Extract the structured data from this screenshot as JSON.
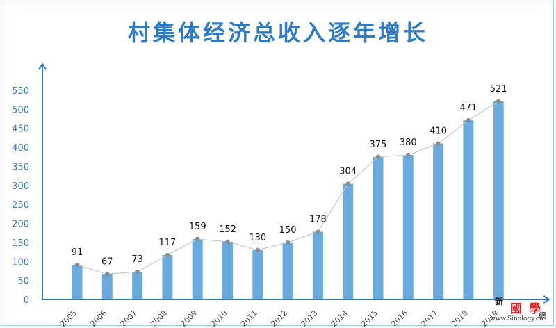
{
  "title": "村集体经济总收入逐年增长",
  "colors": {
    "title": "#2e7bc4",
    "bar": "#6aaadc",
    "axis": "#2e7bc4",
    "line": "#c8c8c8",
    "marker": "#8c8c8c",
    "ytick": "#3a77b5",
    "frame": "#9fc9dc"
  },
  "watermark": {
    "char1": "新",
    "char2": "國學",
    "char3": "網",
    "url": "www.Sinology.cn"
  },
  "chart_data": {
    "type": "bar",
    "title": "村集体经济总收入逐年增长",
    "xlabel": "",
    "ylabel": "",
    "categories": [
      "2005",
      "2006",
      "2007",
      "2008",
      "2009",
      "2010",
      "2011",
      "2012",
      "2013",
      "2014",
      "2015",
      "2016",
      "2017",
      "2018",
      "2019"
    ],
    "values": [
      91,
      67,
      73,
      117,
      159,
      152,
      130,
      150,
      178,
      304,
      375,
      380,
      410,
      471,
      521
    ],
    "data_labels": [
      "91",
      "67",
      "73",
      "117",
      "159",
      "152",
      "130",
      "150",
      "178",
      "304",
      "375",
      "380",
      "410",
      "471",
      "521"
    ],
    "overlay_line": true,
    "yticks": [
      "0",
      "50",
      "100",
      "150",
      "200",
      "250",
      "300",
      "350",
      "400",
      "450",
      "500",
      "550"
    ],
    "ylim": [
      0,
      550
    ],
    "grid": false,
    "legend": "none"
  }
}
